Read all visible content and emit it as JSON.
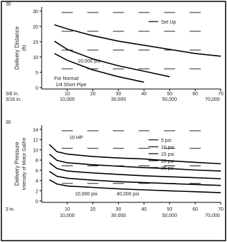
{
  "chart_data": [
    {
      "type": "line",
      "section_label": "30",
      "ylabel": "Delivery Distance",
      "yunit": "(ft)",
      "ylim": [
        0,
        30
      ],
      "y_ticks": [
        "30",
        "20",
        "15",
        "10",
        "5",
        "0"
      ],
      "x_label_top": [
        "3/8 in.",
        "3/16 in."
      ],
      "x_label_bottom": [],
      "x_ticks_top": [
        "10",
        "20",
        "30",
        "40",
        "50",
        "60",
        "70"
      ],
      "x_ticks_bottom": [
        "10,000",
        "20,000",
        "30,000",
        "40,000",
        "50,000",
        "60,000",
        "70,000"
      ],
      "x": [
        5,
        10,
        20,
        30,
        40,
        50,
        60,
        70
      ],
      "legend": [
        "Set Up"
      ],
      "annotations": [
        "10,000 psi",
        "For Normal",
        "1/4 Short Pipe"
      ],
      "series": [
        {
          "values": [
            23.5,
            22.0,
            19.5,
            17.5,
            16.0,
            14.5,
            13.0,
            12.0
          ]
        },
        {
          "values": [
            17.5,
            14.5,
            11.0,
            8.5,
            6.5,
            4.5,
            null,
            null
          ]
        },
        {
          "values": [
            13.0,
            10.5,
            7.0,
            4.5,
            2.5,
            null,
            null,
            null
          ]
        }
      ]
    },
    {
      "type": "line",
      "section_label": "30",
      "ylabel": "Delivery Pressure",
      "ylabel2": "Intensity of Motor Gal/Hr",
      "ylim": [
        0,
        16
      ],
      "y_ticks": [
        "14",
        "12",
        "10",
        "8",
        "6",
        "4",
        "2",
        "0"
      ],
      "x_label_top": [
        "3 in."
      ],
      "x_label_bottom": [],
      "x_ticks_top": [
        "10",
        "20",
        "30",
        "40",
        "50",
        "60",
        "70"
      ],
      "x_ticks_bottom": [
        "10,000",
        "20,000",
        "30,000",
        "40,000",
        "50,000",
        "60,000",
        "70,000"
      ],
      "x": [
        3,
        6,
        10,
        20,
        30,
        40,
        50,
        60,
        70
      ],
      "legend": [
        "5 psi",
        "10 psi",
        "15 psi",
        "20 psi",
        "25 psi"
      ],
      "annotations": [
        "10 HP",
        "10,000 psi",
        "40,000 psi"
      ],
      "series": [
        {
          "values": [
            12.0,
            10.5,
            10.0,
            9.5,
            9.2,
            9.0,
            8.6,
            8.3,
            8.0
          ]
        },
        {
          "values": [
            10.0,
            8.7,
            8.2,
            7.8,
            7.5,
            7.2,
            7.0,
            6.7,
            6.5
          ]
        },
        {
          "values": [
            8.2,
            7.0,
            6.5,
            6.1,
            5.8,
            5.5,
            5.3,
            5.1,
            4.9
          ]
        },
        {
          "values": [
            6.4,
            5.4,
            5.0,
            4.6,
            4.3,
            4.1,
            3.9,
            3.7,
            3.5
          ]
        },
        {
          "values": [
            4.7,
            3.8,
            3.4,
            3.1,
            2.8,
            2.6,
            2.4,
            2.2,
            2.0
          ]
        }
      ]
    }
  ]
}
